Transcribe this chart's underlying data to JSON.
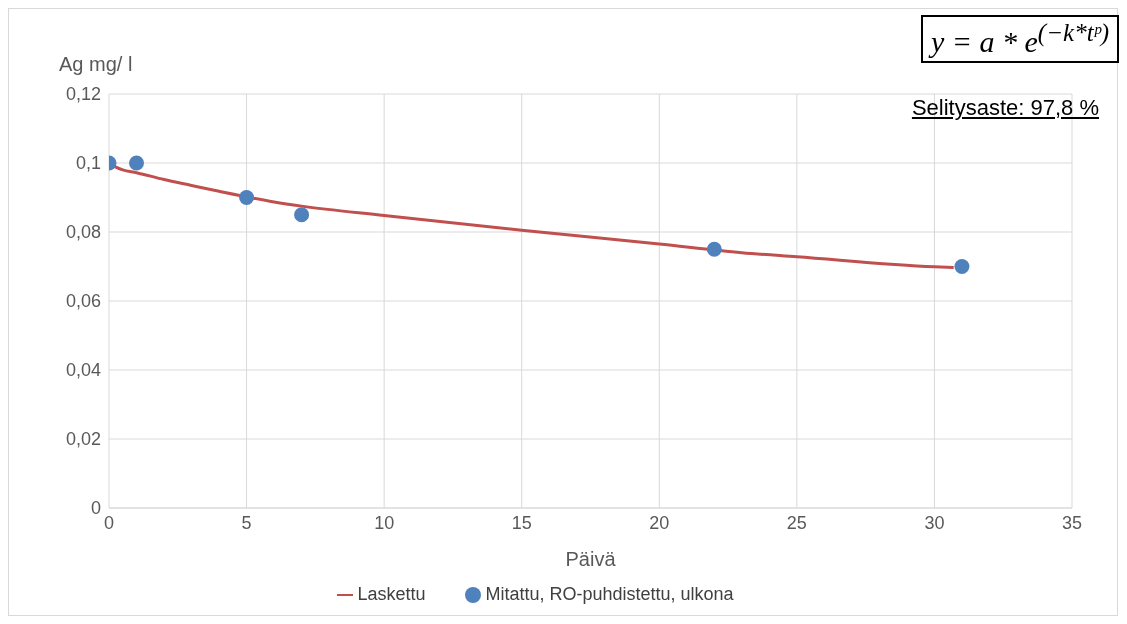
{
  "chart_data": {
    "type": "scatter",
    "xlabel": "Päivä",
    "ylabel": "Ag mg/ l",
    "xlim": [
      0,
      35
    ],
    "xticks": [
      0,
      5,
      10,
      15,
      20,
      25,
      30,
      35
    ],
    "ylim": [
      0,
      0.12
    ],
    "yticks": [
      {
        "value": 0,
        "label": "0"
      },
      {
        "value": 0.02,
        "label": "0,02"
      },
      {
        "value": 0.04,
        "label": "0,04"
      },
      {
        "value": 0.06,
        "label": "0,06"
      },
      {
        "value": 0.08,
        "label": "0,08"
      },
      {
        "value": 0.1,
        "label": "0,1"
      },
      {
        "value": 0.12,
        "label": "0,12"
      }
    ],
    "grid": true,
    "legend": "bottom",
    "marker": "circle",
    "annotations": [
      "y = a * e$^{(−k*tᵖ)}$",
      "Selitysaste: 97,8 %"
    ],
    "series": [
      {
        "name": "Laskettu",
        "type": "line",
        "marker": "none",
        "color": "#c0504d",
        "x": [
          0,
          0.25,
          0.5,
          1,
          2,
          3,
          4,
          6,
          7,
          10,
          15,
          20,
          23,
          25,
          30,
          30.7
        ],
        "values": [
          0.1,
          0.0988,
          0.098,
          0.0972,
          0.0952,
          0.0935,
          0.0918,
          0.0887,
          0.0875,
          0.0848,
          0.0805,
          0.0765,
          0.074,
          0.0728,
          0.0699,
          0.0697
        ]
      },
      {
        "name": "Mitattu, RO-puhdistettu, ulkona",
        "color": "#4f81bd",
        "x": [
          0,
          1,
          5,
          7,
          22,
          31
        ],
        "values": [
          0.1,
          0.1,
          0.09,
          0.085,
          0.075,
          0.07
        ]
      }
    ]
  }
}
